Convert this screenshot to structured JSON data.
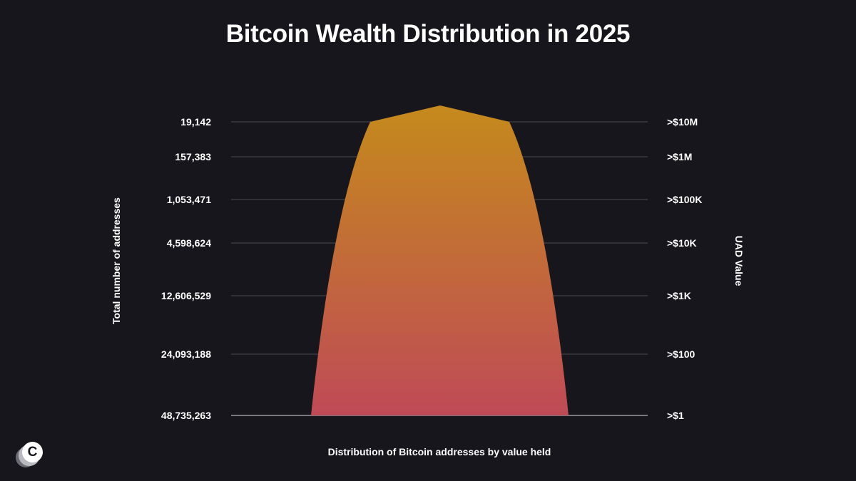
{
  "chart_data": {
    "type": "area",
    "title": "Bitcoin Wealth Distribution in 2025",
    "xlabel": "Distribution of Bitcoin addresses by value held",
    "ylabel": "Total number of addresses",
    "y2label": "UAD Value",
    "grid": true,
    "levels": [
      {
        "count_label": "19,142",
        "value_label": ">$10M"
      },
      {
        "count_label": "157,383",
        "value_label": ">$1M"
      },
      {
        "count_label": "1,053,471",
        "value_label": ">$100K"
      },
      {
        "count_label": "4,598,624",
        "value_label": ">$10K"
      },
      {
        "count_label": "12,606,529",
        "value_label": ">$1K"
      },
      {
        "count_label": "24,093,188",
        "value_label": ">$100"
      },
      {
        "count_label": "48,735,263",
        "value_label": ">$1"
      }
    ],
    "counts": [
      19142,
      157383,
      1053471,
      4598624,
      12606529,
      24093188,
      48735263
    ],
    "colors": {
      "top": "#c58a1c",
      "bottom": "#bf4a57",
      "grid": "#4a4950",
      "baseline": "#9a99a0"
    }
  },
  "brand": {
    "logo_letter": "C"
  }
}
